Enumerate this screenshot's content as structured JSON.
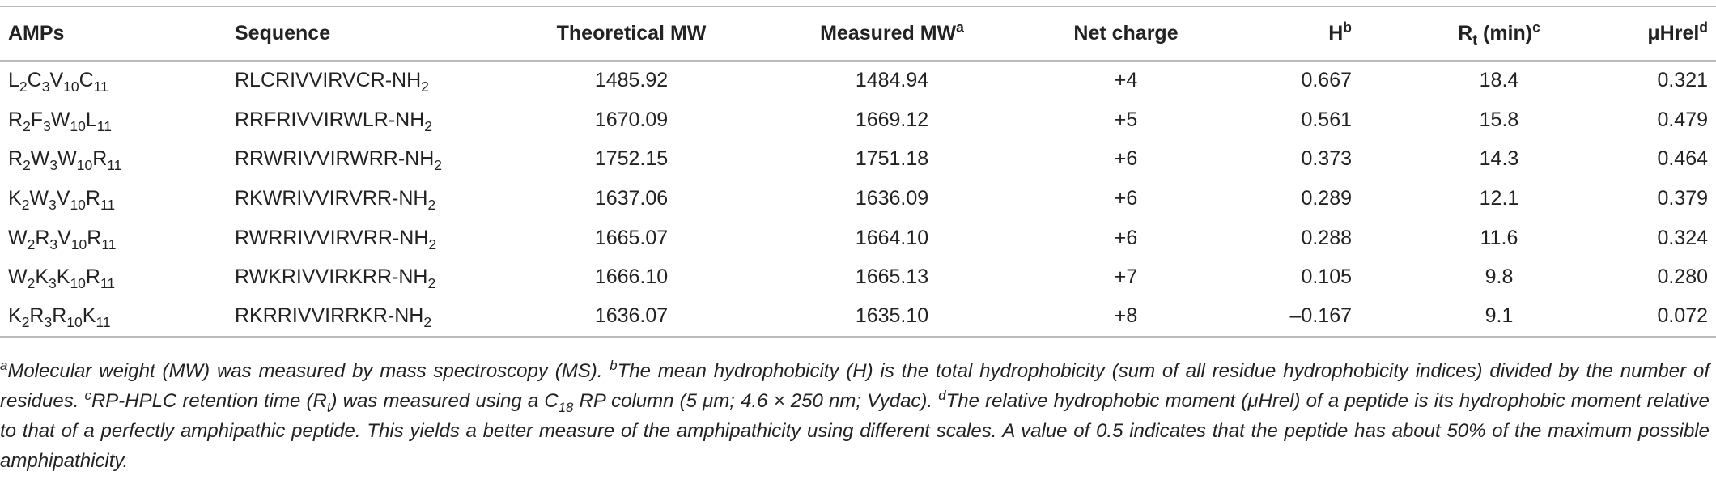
{
  "table": {
    "header": [
      "AMPs",
      "Sequence",
      "Theoretical MW",
      [
        "Measured MW",
        {
          "sup": "a"
        }
      ],
      "Net charge",
      [
        "H",
        {
          "sup": "b"
        }
      ],
      [
        "R",
        {
          "sub": "t"
        },
        " (min)",
        {
          "sup": "c"
        }
      ],
      [
        "μHrel",
        {
          "sup": "d"
        }
      ]
    ],
    "rows": [
      [
        [
          "L",
          {
            "sub": "2"
          },
          "C",
          {
            "sub": "3"
          },
          "V",
          {
            "sub": "10"
          },
          "C",
          {
            "sub": "11"
          }
        ],
        [
          "RLCRIVVIRVCR-NH",
          {
            "sub": "2"
          }
        ],
        "1485.92",
        "1484.94",
        "+4",
        "0.667",
        "18.4",
        "0.321"
      ],
      [
        [
          "R",
          {
            "sub": "2"
          },
          "F",
          {
            "sub": "3"
          },
          "W",
          {
            "sub": "10"
          },
          "L",
          {
            "sub": "11"
          }
        ],
        [
          "RRFRIVVIRWLR-NH",
          {
            "sub": "2"
          }
        ],
        "1670.09",
        "1669.12",
        "+5",
        "0.561",
        "15.8",
        "0.479"
      ],
      [
        [
          "R",
          {
            "sub": "2"
          },
          "W",
          {
            "sub": "3"
          },
          "W",
          {
            "sub": "10"
          },
          "R",
          {
            "sub": "11"
          }
        ],
        [
          "RRWRIVVIRWRR-NH",
          {
            "sub": "2"
          }
        ],
        "1752.15",
        "1751.18",
        "+6",
        "0.373",
        "14.3",
        "0.464"
      ],
      [
        [
          "K",
          {
            "sub": "2"
          },
          "W",
          {
            "sub": "3"
          },
          "V",
          {
            "sub": "10"
          },
          "R",
          {
            "sub": "11"
          }
        ],
        [
          "RKWRIVVIRVRR-NH",
          {
            "sub": "2"
          }
        ],
        "1637.06",
        "1636.09",
        "+6",
        "0.289",
        "12.1",
        "0.379"
      ],
      [
        [
          "W",
          {
            "sub": "2"
          },
          "R",
          {
            "sub": "3"
          },
          "V",
          {
            "sub": "10"
          },
          "R",
          {
            "sub": "11"
          }
        ],
        [
          "RWRRIVVIRVRR-NH",
          {
            "sub": "2"
          }
        ],
        "1665.07",
        "1664.10",
        "+6",
        "0.288",
        "11.6",
        "0.324"
      ],
      [
        [
          "W",
          {
            "sub": "2"
          },
          "K",
          {
            "sub": "3"
          },
          "K",
          {
            "sub": "10"
          },
          "R",
          {
            "sub": "11"
          }
        ],
        [
          "RWKRIVVIRKRR-NH",
          {
            "sub": "2"
          }
        ],
        "1666.10",
        "1665.13",
        "+7",
        "0.105",
        "9.8",
        "0.280"
      ],
      [
        [
          "K",
          {
            "sub": "2"
          },
          "R",
          {
            "sub": "3"
          },
          "R",
          {
            "sub": "10"
          },
          "K",
          {
            "sub": "11"
          }
        ],
        [
          "RKRRIVVIRRKR-NH",
          {
            "sub": "2"
          }
        ],
        "1636.07",
        "1635.10",
        "+8",
        "–0.167",
        "9.1",
        "0.072"
      ]
    ],
    "footnote": [
      {
        "sup": "a"
      },
      "Molecular weight (MW) was measured by mass spectroscopy (MS). ",
      {
        "sup": "b"
      },
      "The mean hydrophobicity (H) is the total hydrophobicity (sum of all residue hydrophobicity indices) divided by the number of residues. ",
      {
        "sup": "c"
      },
      "RP-HPLC retention time (R",
      {
        "sub": "t"
      },
      ") was measured using a C",
      {
        "sub": "18"
      },
      " RP column (5 μm; 4.6 × 250 nm; Vydac). ",
      {
        "sup": "d"
      },
      "The relative hydrophobic moment (μHrel) of a peptide is its hydrophobic moment relative to that of a perfectly amphipathic peptide. This yields a better measure of the amphipathicity using different scales. A value of 0.5 indicates that the peptide has about 50% of the maximum possible amphipathicity."
    ]
  }
}
